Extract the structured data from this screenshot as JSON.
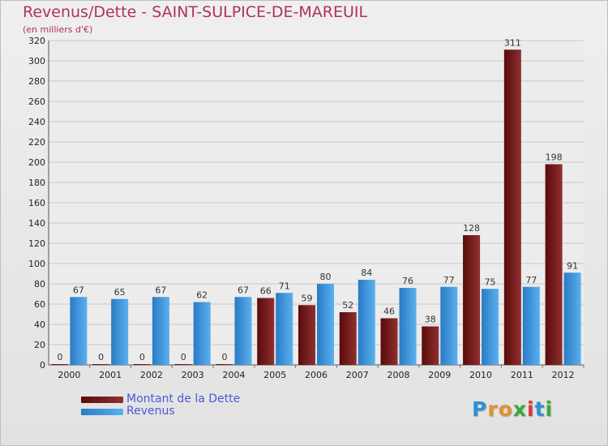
{
  "header": {
    "title": "Revenus/Dette - SAINT-SULPICE-DE-MAREUIL",
    "subtitle": "(en milliers d'€)"
  },
  "chart_data": {
    "type": "bar",
    "title": "Revenus/Dette - SAINT-SULPICE-DE-MAREUIL",
    "subtitle": "(en milliers d'€)",
    "categories": [
      "2000",
      "2001",
      "2002",
      "2003",
      "2004",
      "2005",
      "2006",
      "2007",
      "2008",
      "2009",
      "2010",
      "2011",
      "2012"
    ],
    "series": [
      {
        "name": "Montant de la Dette",
        "color": "#7a1a1a",
        "values": [
          0,
          0,
          0,
          0,
          0,
          66,
          59,
          52,
          46,
          38,
          128,
          311,
          198
        ]
      },
      {
        "name": "Revenus",
        "color": "#3a93dc",
        "values": [
          67,
          65,
          67,
          62,
          67,
          71,
          80,
          84,
          76,
          77,
          75,
          77,
          91
        ]
      }
    ],
    "ylim": [
      0,
      320
    ],
    "yticks": [
      0,
      20,
      40,
      60,
      80,
      100,
      120,
      140,
      160,
      180,
      200,
      220,
      240,
      260,
      280,
      300,
      320
    ],
    "grid": true,
    "legend_position": "bottom-left",
    "colors": {
      "dette_dark": "#5a0a0a",
      "dette_light": "#8e3030",
      "revenus_dark": "#2a7bc4",
      "revenus_light": "#5ab0ef"
    }
  },
  "legend": {
    "items": [
      {
        "label": "Montant de la Dette",
        "color": "#7a1a1a"
      },
      {
        "label": "Revenus",
        "color": "#3a93dc"
      }
    ]
  },
  "logo": {
    "text": "Proxiti"
  }
}
